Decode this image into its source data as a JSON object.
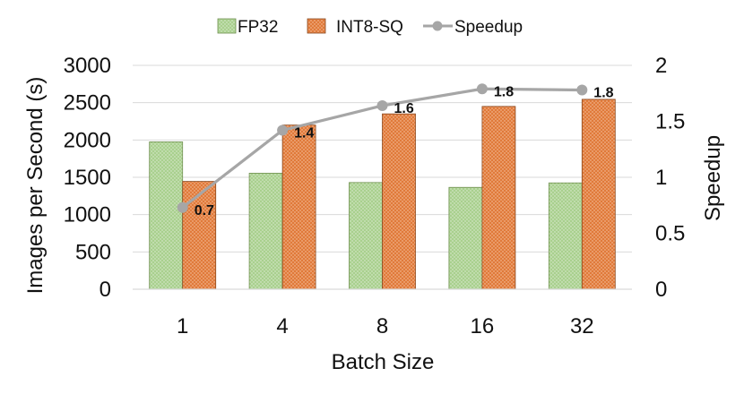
{
  "chart_data": {
    "type": "bar+line",
    "title": "",
    "categories": [
      "1",
      "4",
      "8",
      "16",
      "32"
    ],
    "series": [
      {
        "name": "FP32",
        "type": "bar",
        "axis": "left",
        "color": "#a9d08e",
        "pattern": "dotted-light",
        "values": [
          1975,
          1555,
          1430,
          1365,
          1425
        ]
      },
      {
        "name": "INT8-SQ",
        "type": "bar",
        "axis": "left",
        "color": "#e07a3a",
        "pattern": "dotted-orange",
        "values": [
          1445,
          2200,
          2350,
          2450,
          2545
        ]
      },
      {
        "name": "Speedup",
        "type": "line",
        "axis": "right",
        "color": "#a6a6a6",
        "values": [
          0.73,
          1.42,
          1.64,
          1.79,
          1.78
        ],
        "labels": [
          "0.7",
          "1.4",
          "1.6",
          "1.8",
          "1.8"
        ]
      }
    ],
    "xlabel": "Batch Size",
    "ylabel": "Images per Second (s)",
    "y2label": "Speedup",
    "ylim": [
      0,
      3000
    ],
    "yticks": [
      "0",
      "500",
      "1000",
      "1500",
      "2000",
      "2500",
      "3000"
    ],
    "y2lim": [
      0,
      2
    ],
    "y2ticks": [
      "0",
      "0.5",
      "1",
      "1.5",
      "2"
    ],
    "grid": true,
    "legend": "top-center"
  }
}
